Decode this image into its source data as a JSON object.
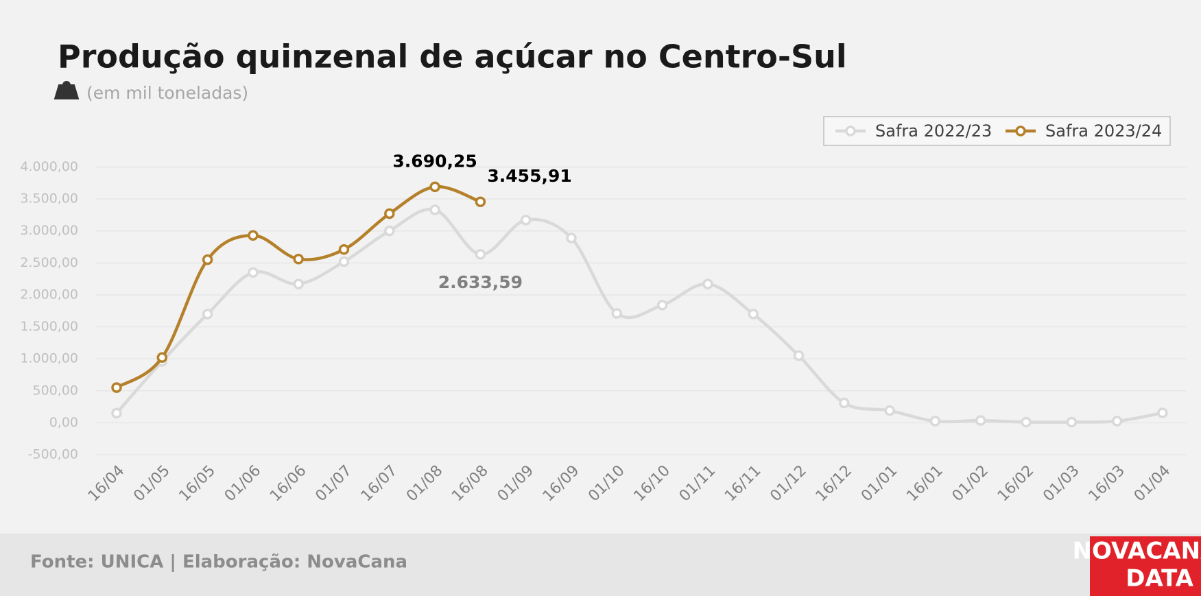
{
  "chart_data": {
    "type": "line",
    "title": "Produção quinzenal de açúcar no Centro-Sul",
    "subtitle": "(em mil toneladas)",
    "source": "Fonte: UNICA | Elaboração: NovaCana",
    "logo": [
      "NOVACANA",
      "DATA"
    ],
    "categories": [
      "16/04",
      "01/05",
      "16/05",
      "01/06",
      "16/06",
      "01/07",
      "16/07",
      "01/08",
      "16/08",
      "01/09",
      "16/09",
      "01/10",
      "16/10",
      "01/11",
      "16/11",
      "01/12",
      "16/12",
      "01/01",
      "16/01",
      "01/02",
      "16/02",
      "01/03",
      "16/03",
      "01/04"
    ],
    "series": [
      {
        "name": "Safra 2022/23",
        "color": "#d9d9d9",
        "label_color": "#808080",
        "values": [
          150,
          960,
          1700,
          2350,
          2170,
          2520,
          3000,
          3330,
          2633.59,
          3170,
          2890,
          1710,
          1840,
          2170,
          1700,
          1050,
          310,
          190,
          25,
          35,
          10,
          10,
          25,
          155
        ],
        "value_labels": [
          null,
          null,
          null,
          null,
          null,
          null,
          null,
          null,
          "2.633,59",
          null,
          null,
          null,
          null,
          null,
          null,
          null,
          null,
          null,
          null,
          null,
          null,
          null,
          null,
          null
        ]
      },
      {
        "name": "Safra 2023/24",
        "color": "#b5802a",
        "label_color": "#000000",
        "values": [
          550,
          1020,
          2550,
          2930,
          2560,
          2710,
          3270,
          3690.25,
          3455.91,
          null,
          null,
          null,
          null,
          null,
          null,
          null,
          null,
          null,
          null,
          null,
          null,
          null,
          null,
          null
        ],
        "value_labels": [
          null,
          null,
          null,
          null,
          null,
          null,
          null,
          "3.690,25",
          "3.455,91",
          null,
          null,
          null,
          null,
          null,
          null,
          null,
          null,
          null,
          null,
          null,
          null,
          null,
          null,
          null
        ]
      }
    ],
    "ylim": [
      -500,
      4000
    ],
    "yticks": [
      {
        "value": -500,
        "label": "-500,00"
      },
      {
        "value": 0,
        "label": "0,00"
      },
      {
        "value": 500,
        "label": "500,00"
      },
      {
        "value": 1000,
        "label": "1.000,00"
      },
      {
        "value": 1500,
        "label": "1.500,00"
      },
      {
        "value": 2000,
        "label": "2.000,00"
      },
      {
        "value": 2500,
        "label": "2.500,00"
      },
      {
        "value": 3000,
        "label": "3.000,00"
      },
      {
        "value": 3500,
        "label": "3.500,00"
      },
      {
        "value": 4000,
        "label": "4.000,00"
      }
    ],
    "grid": true,
    "legend": "top-right"
  }
}
